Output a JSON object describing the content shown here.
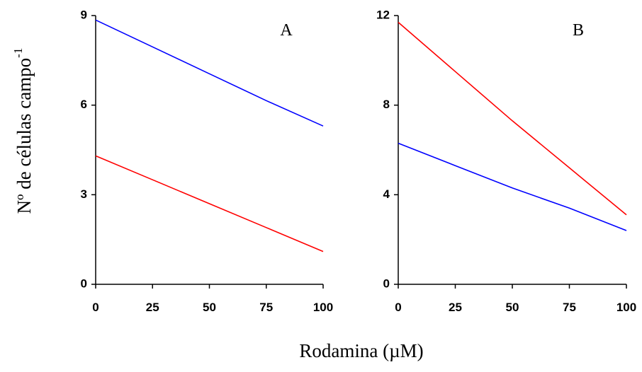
{
  "figure": {
    "ylabel_main": "Nº de células campo",
    "ylabel_sup": "-1",
    "xlabel": "Rodamina (µM)"
  },
  "chart_data": [
    {
      "type": "line",
      "panel_label": "A",
      "x": [
        0,
        25,
        50,
        75,
        100
      ],
      "xticks": [
        "0",
        "25",
        "50",
        "75",
        "100"
      ],
      "xlim": [
        0,
        100
      ],
      "ylim": [
        0,
        9
      ],
      "yticks": [
        "0",
        "3",
        "6",
        "9"
      ],
      "grid": false,
      "series": [
        {
          "color": "#0000ff",
          "values": [
            8.85,
            7.95,
            7.05,
            6.15,
            5.3
          ]
        },
        {
          "color": "#ff0000",
          "values": [
            4.3,
            3.5,
            2.7,
            1.9,
            1.1
          ]
        }
      ]
    },
    {
      "type": "line",
      "panel_label": "B",
      "x": [
        0,
        25,
        50,
        75,
        100
      ],
      "xticks": [
        "0",
        "25",
        "50",
        "75",
        "100"
      ],
      "xlim": [
        0,
        100
      ],
      "ylim": [
        0,
        12
      ],
      "yticks": [
        "0",
        "4",
        "8",
        "12"
      ],
      "grid": false,
      "series": [
        {
          "color": "#ff0000",
          "values": [
            11.7,
            9.5,
            7.3,
            5.2,
            3.1
          ]
        },
        {
          "color": "#0000ff",
          "values": [
            6.3,
            5.3,
            4.3,
            3.4,
            2.4
          ]
        }
      ]
    }
  ]
}
